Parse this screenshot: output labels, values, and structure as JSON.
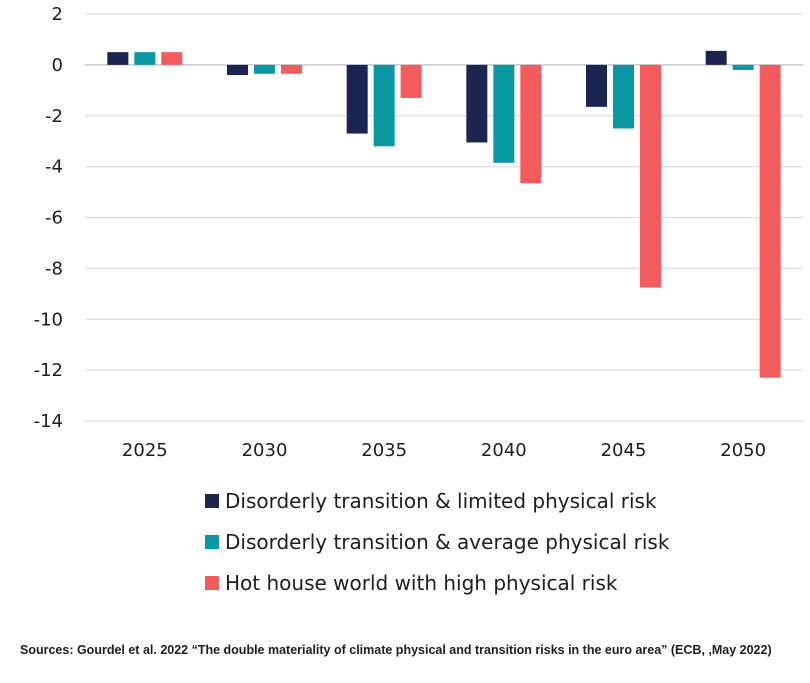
{
  "chart_data": {
    "type": "bar",
    "categories": [
      "2025",
      "2030",
      "2035",
      "2040",
      "2045",
      "2050"
    ],
    "series": [
      {
        "name": "Disorderly transition & limited physical risk",
        "color": "#1c2452",
        "values": [
          0.5,
          -0.4,
          -2.7,
          -3.05,
          -1.65,
          0.55
        ]
      },
      {
        "name": "Disorderly transition & average physical risk",
        "color": "#0a98a5",
        "values": [
          0.5,
          -0.35,
          -3.2,
          -3.85,
          -2.5,
          -0.2
        ]
      },
      {
        "name": "Hot house world with high physical risk",
        "color": "#f25c5c",
        "values": [
          0.5,
          -0.35,
          -1.3,
          -4.65,
          -8.75,
          -12.3
        ]
      }
    ],
    "yticks": [
      2,
      0,
      -2,
      -4,
      -6,
      -8,
      -10,
      -12,
      -14
    ],
    "ylim": [
      -14,
      2
    ],
    "grid": true,
    "legend_position": "bottom",
    "title": "",
    "xlabel": "",
    "ylabel": ""
  },
  "source_note": "Sources: Gourdel et al. 2022 “The double materiality of climate physical and transition risks in the euro area” (ECB, ,May 2022)"
}
